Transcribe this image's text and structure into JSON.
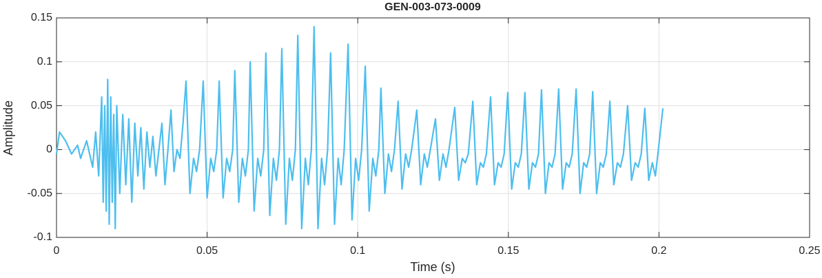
{
  "chart_data": {
    "type": "line",
    "title": "GEN-003-073-0009",
    "xlabel": "Time (s)",
    "ylabel": "Amplitude",
    "color": "#4dbeee",
    "xlim": [
      0,
      0.25
    ],
    "ylim": [
      -0.1,
      0.15
    ],
    "xticks": [
      0,
      0.05,
      0.1,
      0.15,
      0.2,
      0.25
    ],
    "yticks": [
      -0.1,
      -0.05,
      0,
      0.05,
      0.1,
      0.15
    ],
    "grid": true,
    "x": [
      0,
      0.001,
      0.003,
      0.005,
      0.007,
      0.008,
      0.01,
      0.012,
      0.013,
      0.014,
      0.015,
      0.0155,
      0.016,
      0.0165,
      0.017,
      0.0175,
      0.018,
      0.0185,
      0.019,
      0.0195,
      0.02,
      0.021,
      0.022,
      0.023,
      0.024,
      0.025,
      0.026,
      0.027,
      0.028,
      0.029,
      0.03,
      0.031,
      0.032,
      0.033,
      0.035,
      0.036,
      0.037,
      0.038,
      0.039,
      0.04,
      0.041,
      0.042,
      0.043,
      0.0443,
      0.0455,
      0.0465,
      0.0475,
      0.0487,
      0.05,
      0.0512,
      0.0522,
      0.0532,
      0.054,
      0.0553,
      0.0565,
      0.0575,
      0.0585,
      0.0592,
      0.0605,
      0.0617,
      0.0627,
      0.0637,
      0.0643,
      0.0656,
      0.0668,
      0.0678,
      0.0688,
      0.0695,
      0.0708,
      0.072,
      0.073,
      0.074,
      0.0748,
      0.0761,
      0.0773,
      0.0783,
      0.0793,
      0.0801,
      0.0814,
      0.0826,
      0.0836,
      0.0846,
      0.0855,
      0.0868,
      0.088,
      0.089,
      0.09,
      0.091,
      0.0923,
      0.0935,
      0.0945,
      0.0955,
      0.0968,
      0.0981,
      0.0993,
      0.1003,
      0.1013,
      0.1025,
      0.1038,
      0.105,
      0.106,
      0.107,
      0.1077,
      0.109,
      0.1102,
      0.1112,
      0.1122,
      0.1134,
      0.1147,
      0.1159,
      0.1169,
      0.1179,
      0.1196,
      0.1209,
      0.1221,
      0.1231,
      0.1241,
      0.1258,
      0.1271,
      0.1283,
      0.1293,
      0.1303,
      0.1322,
      0.1335,
      0.1347,
      0.1357,
      0.1367,
      0.1382,
      0.1395,
      0.1407,
      0.1417,
      0.1427,
      0.1441,
      0.1454,
      0.1466,
      0.1476,
      0.1486,
      0.1498,
      0.1511,
      0.1523,
      0.1533,
      0.1543,
      0.1555,
      0.1568,
      0.158,
      0.159,
      0.16,
      0.161,
      0.1623,
      0.1635,
      0.1645,
      0.1655,
      0.1667,
      0.168,
      0.1692,
      0.1702,
      0.1712,
      0.1725,
      0.1738,
      0.175,
      0.176,
      0.177,
      0.178,
      0.1793,
      0.1805,
      0.1815,
      0.1825,
      0.1837,
      0.185,
      0.1862,
      0.1872,
      0.1882,
      0.1896,
      0.1909,
      0.1921,
      0.1931,
      0.1941,
      0.1953,
      0.1966,
      0.1978,
      0.1988,
      0.1998,
      0.2013
    ],
    "values": [
      -0.005,
      0.02,
      0.01,
      -0.005,
      0.005,
      -0.01,
      0.01,
      -0.02,
      0.02,
      -0.03,
      0.06,
      -0.06,
      0.05,
      -0.07,
      0.08,
      -0.085,
      0.06,
      -0.06,
      0.04,
      -0.09,
      0.05,
      -0.05,
      0.04,
      -0.04,
      0.035,
      -0.06,
      0.03,
      -0.03,
      0.025,
      -0.045,
      0.02,
      -0.02,
      0.015,
      -0.03,
      0.03,
      -0.04,
      0,
      0.045,
      -0.025,
      0,
      -0.01,
      0.03,
      0.078,
      -0.05,
      -0.01,
      -0.025,
      0,
      0.078,
      -0.055,
      -0.01,
      -0.025,
      0,
      0.078,
      -0.055,
      -0.01,
      -0.025,
      0,
      0.09,
      -0.06,
      -0.01,
      -0.03,
      0,
      0.1,
      -0.07,
      -0.01,
      -0.03,
      0,
      0.11,
      -0.075,
      -0.01,
      -0.035,
      0,
      0.115,
      -0.085,
      -0.01,
      -0.035,
      0,
      0.13,
      -0.09,
      -0.01,
      -0.04,
      0,
      0.14,
      -0.09,
      -0.01,
      -0.04,
      0,
      0.11,
      -0.085,
      -0.01,
      -0.04,
      0,
      0.12,
      -0.08,
      -0.01,
      -0.035,
      0,
      0.095,
      -0.07,
      -0.01,
      -0.03,
      0,
      0.07,
      -0.05,
      -0.005,
      -0.025,
      0,
      0.055,
      -0.045,
      -0.005,
      -0.02,
      0,
      0.045,
      -0.04,
      -0.005,
      -0.02,
      0,
      0.035,
      -0.035,
      -0.005,
      -0.02,
      0,
      0.048,
      -0.035,
      -0.01,
      -0.015,
      -0.005,
      0.055,
      -0.04,
      -0.015,
      -0.02,
      -0.005,
      0.06,
      -0.04,
      -0.015,
      -0.02,
      -0.005,
      0.065,
      -0.045,
      -0.015,
      -0.02,
      -0.005,
      0.065,
      -0.045,
      -0.015,
      -0.02,
      -0.005,
      0.068,
      -0.05,
      -0.015,
      -0.02,
      -0.005,
      0.069,
      -0.045,
      -0.015,
      -0.02,
      -0.005,
      0.069,
      -0.05,
      -0.015,
      -0.02,
      -0.005,
      0.066,
      -0.05,
      -0.015,
      -0.02,
      -0.005,
      0.055,
      -0.04,
      -0.015,
      -0.02,
      -0.005,
      0.05,
      -0.035,
      -0.015,
      -0.02,
      -0.005,
      0.047,
      -0.035,
      -0.015,
      -0.03,
      0,
      0.047
    ]
  }
}
